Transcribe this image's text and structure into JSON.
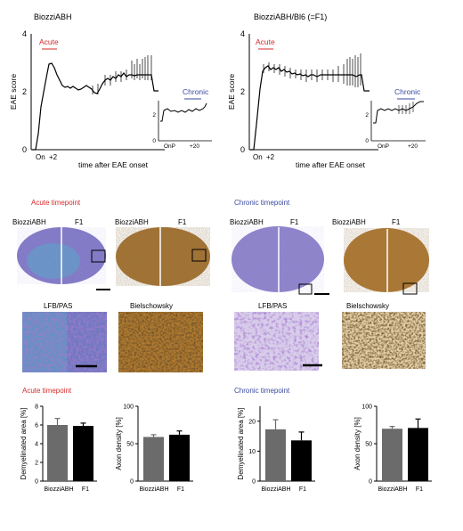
{
  "panel_a": {
    "charts": [
      {
        "title": "BiozziABH",
        "y_label": "EAE score",
        "x_label": "time after EAE onset",
        "x_ticks": [
          "On",
          "+2"
        ],
        "y_ticks": [
          0,
          2,
          4
        ],
        "phase_acute": "Acute",
        "inset": {
          "label": "Chronic",
          "y_ticks": [
            0,
            2
          ],
          "x_ticks": [
            "OnP",
            "+20"
          ]
        }
      },
      {
        "title": "BiozziABH/Bl6 (=F1)",
        "y_label": "EAE score",
        "x_label": "time after EAE onset",
        "x_ticks": [
          "On",
          "+2"
        ],
        "y_ticks": [
          0,
          2,
          4
        ],
        "phase_acute": "Acute",
        "inset": {
          "label": "Chronic",
          "y_ticks": [
            0,
            2
          ],
          "x_ticks": [
            "OnP",
            "+20"
          ]
        }
      }
    ]
  },
  "panel_b": {
    "acute_title": "Acute timepoint",
    "chronic_title": "Chronic timepoint",
    "section_labels": {
      "left": "BiozziABH",
      "right": "F1"
    },
    "stains": {
      "lfb": "LFB/PAS",
      "biel": "Bielschowsky"
    }
  },
  "panel_c": {
    "acute_title": "Acute timepoint",
    "chronic_title": "Chronic timepoint"
  },
  "colors": {
    "red_text": "#d42a2a",
    "blue_text": "#3a4aa0",
    "biozzi_bar": "#6b6b6b",
    "f1_bar": "#000000",
    "lfb_purple": "#7b6bbf",
    "lfb_blue": "#5aa0c8",
    "biel_brown": "#9b6a2a"
  },
  "chart_data": [
    {
      "type": "bar",
      "categories": [
        "BiozziABH",
        "F1"
      ],
      "values": [
        6.0,
        5.9
      ],
      "errors": [
        0.7,
        0.3
      ],
      "title": "",
      "xlabel": "",
      "ylabel": "Demyelinated area [%]",
      "ylim": [
        0,
        8
      ],
      "yticks": [
        0,
        2,
        4,
        6,
        8
      ]
    },
    {
      "type": "bar",
      "categories": [
        "BiozziABH",
        "F1"
      ],
      "values": [
        59,
        62
      ],
      "errors": [
        3,
        5
      ],
      "title": "",
      "xlabel": "",
      "ylabel": "Axon density [%]",
      "ylim": [
        0,
        100
      ],
      "yticks": [
        0,
        50,
        100
      ]
    },
    {
      "type": "bar",
      "categories": [
        "BiozziABH",
        "F1"
      ],
      "values": [
        17.3,
        13.6
      ],
      "errors": [
        3.2,
        2.8
      ],
      "title": "",
      "xlabel": "",
      "ylabel": "Demyelinated area [%]",
      "ylim": [
        0,
        25
      ],
      "yticks": [
        0,
        10,
        20
      ]
    },
    {
      "type": "bar",
      "categories": [
        "BiozziABH",
        "F1"
      ],
      "values": [
        70,
        71
      ],
      "errors": [
        3,
        12
      ],
      "title": "",
      "xlabel": "",
      "ylabel": "Axon density [%]",
      "ylim": [
        0,
        100
      ],
      "yticks": [
        0,
        50,
        100
      ]
    }
  ]
}
